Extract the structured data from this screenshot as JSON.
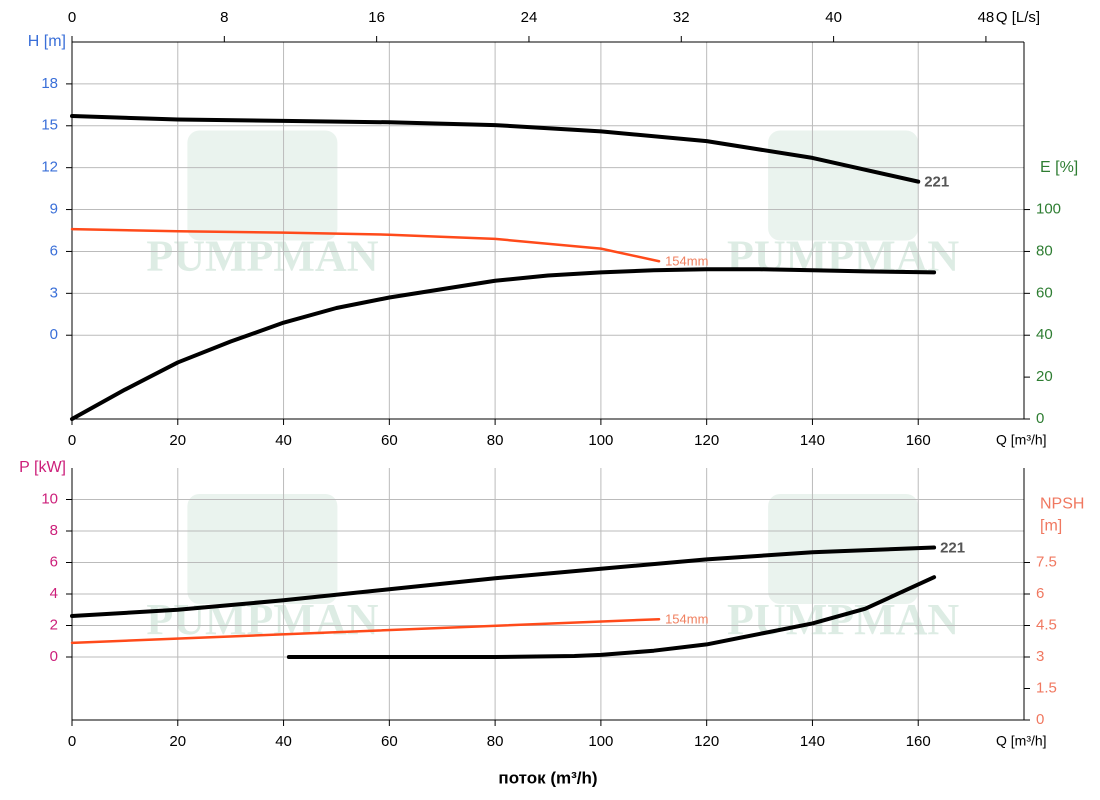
{
  "chart_data": [
    {
      "type": "line",
      "watermark": "PUMPMAN",
      "xlabel": "Q [m³/h]",
      "x2label": "Q [L/s]",
      "ylabel": "H [m]",
      "y2label": "E [%]",
      "xlim": [
        0,
        180
      ],
      "xticks": [
        0,
        20,
        40,
        60,
        80,
        100,
        120,
        140,
        160
      ],
      "x2lim": [
        0,
        50
      ],
      "x2ticks": [
        0,
        8,
        16,
        24,
        32,
        40,
        48
      ],
      "ylim": [
        -6,
        21
      ],
      "yticks": [
        0,
        3,
        6,
        9,
        12,
        15,
        18
      ],
      "ycolor": "#3a6fd8",
      "y2lim": [
        0,
        180
      ],
      "y2ticks": [
        0,
        20,
        40,
        60,
        80,
        100
      ],
      "y2color": "#2e7d32",
      "grid": true,
      "series": [
        {
          "name": "221",
          "color": "#000000",
          "x": [
            0,
            20,
            40,
            60,
            80,
            100,
            120,
            140,
            160
          ],
          "values": [
            15.7,
            15.45,
            15.35,
            15.25,
            15.05,
            14.6,
            13.9,
            12.7,
            11.0
          ]
        },
        {
          "name": "154mm",
          "color": "#ff4a1a",
          "x": [
            0,
            20,
            40,
            60,
            80,
            100,
            111
          ],
          "values": [
            7.6,
            7.45,
            7.35,
            7.2,
            6.9,
            6.2,
            5.3
          ]
        },
        {
          "color": "#000000",
          "axis": "y2",
          "x": [
            0,
            10,
            20,
            30,
            40,
            50,
            60,
            70,
            80,
            90,
            100,
            110,
            120,
            130,
            140,
            150,
            163
          ],
          "values": [
            0,
            14,
            27,
            37,
            46,
            53,
            58,
            62,
            66,
            68.5,
            70,
            71,
            71.5,
            71.5,
            71,
            70.5,
            70
          ]
        }
      ]
    },
    {
      "type": "line",
      "watermark": "PUMPMAN",
      "xlabel": "Q [m³/h]",
      "ylabel": "P [kW]",
      "y2label": [
        "NPSH",
        "[m]"
      ],
      "xlim": [
        0,
        180
      ],
      "xticks": [
        0,
        20,
        40,
        60,
        80,
        100,
        120,
        140,
        160
      ],
      "ylim": [
        -4,
        12
      ],
      "yticks": [
        0,
        2,
        4,
        6,
        8,
        10
      ],
      "ycolor": "#cc1f7a",
      "y2lim": [
        0,
        12
      ],
      "y2ticks": [
        0,
        1.5,
        3,
        4.5,
        6,
        7.5
      ],
      "y2color": "#f07860",
      "grid": true,
      "series": [
        {
          "name": "221",
          "color": "#000000",
          "x": [
            0,
            20,
            40,
            60,
            80,
            100,
            120,
            140,
            163
          ],
          "values": [
            2.6,
            3.0,
            3.6,
            4.3,
            5.0,
            5.6,
            6.2,
            6.65,
            6.95
          ]
        },
        {
          "name": "154mm",
          "color": "#ff4a1a",
          "x": [
            0,
            111
          ],
          "values": [
            0.9,
            2.4
          ]
        },
        {
          "color": "#000000",
          "axis": "y2",
          "x": [
            41,
            60,
            80,
            95,
            100,
            110,
            120,
            130,
            140,
            150,
            163
          ],
          "values": [
            3,
            3,
            3,
            3.05,
            3.1,
            3.3,
            3.6,
            4.1,
            4.6,
            5.3,
            6.8
          ]
        }
      ]
    }
  ],
  "caption": "поток (m³/h)"
}
